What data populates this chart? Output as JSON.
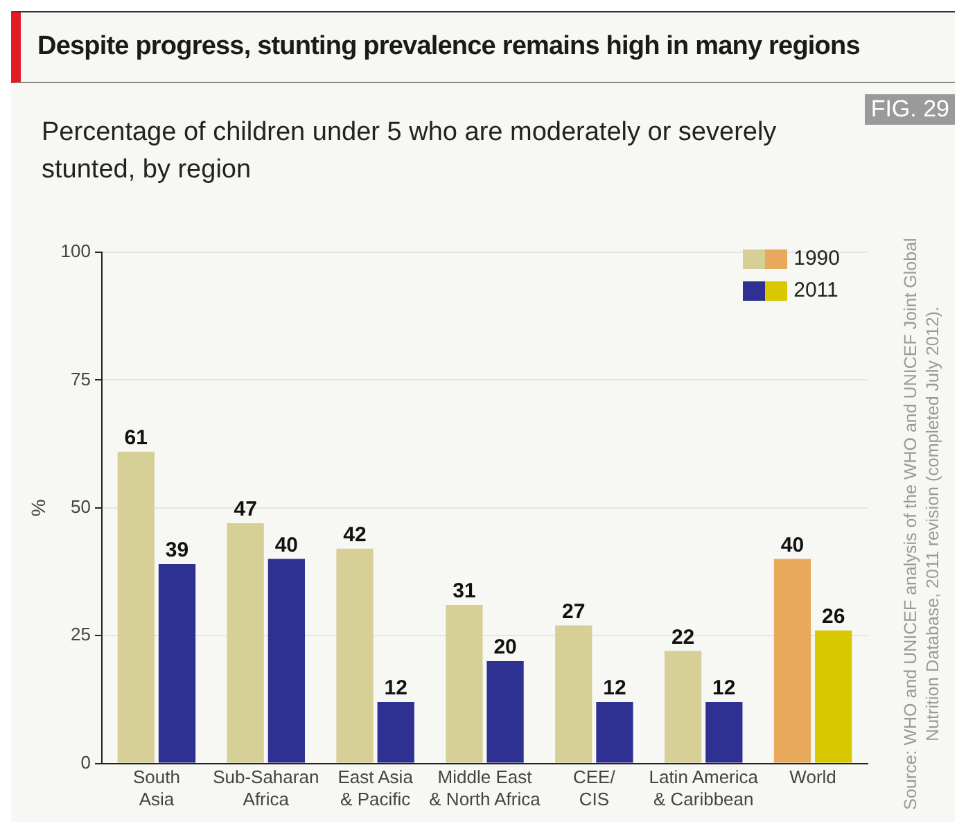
{
  "chart_data": {
    "type": "bar",
    "title": "Despite progress, stunting prevalence remains high in many regions",
    "subtitle": "Percentage of children under 5 who are moderately or severely stunted, by region",
    "ylabel": "%",
    "categories": [
      "South\nAsia",
      "Sub-Saharan\nAfrica",
      "East Asia\n& Pacific",
      "Middle East\n& North Africa",
      "CEE/\nCIS",
      "Latin America\n& Caribbean",
      "World"
    ],
    "series": [
      {
        "name": "1990",
        "color": "#d6d097",
        "colors": [
          "#d6d097",
          "#d6d097",
          "#d6d097",
          "#d6d097",
          "#d6d097",
          "#d6d097",
          "#e8a95c"
        ],
        "values": [
          61,
          47,
          42,
          31,
          27,
          22,
          40
        ]
      },
      {
        "name": "2011",
        "color": "#2e3192",
        "colors": [
          "#2e3192",
          "#2e3192",
          "#2e3192",
          "#2e3192",
          "#2e3192",
          "#2e3192",
          "#d9c800"
        ],
        "values": [
          39,
          40,
          12,
          20,
          12,
          12,
          26
        ]
      }
    ],
    "ylim": [
      0,
      100
    ],
    "yticks": [
      0,
      25,
      50,
      75,
      100
    ],
    "grid": "y",
    "legend": "top right",
    "data_labels": true,
    "annotations": [
      "FIG. 29",
      "Source: WHO and UNICEF analysis of the WHO and UNICEF Joint Global Nutrition Database, 2011 revision (completed July 2012)."
    ]
  }
}
